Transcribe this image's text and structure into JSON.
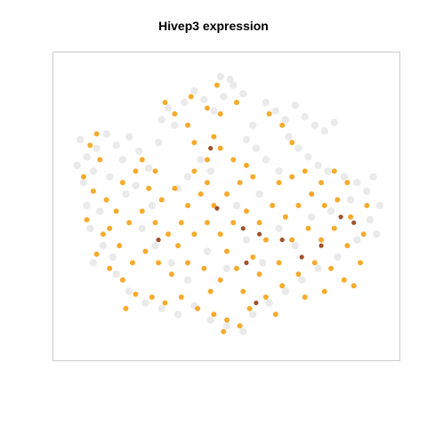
{
  "chart_data": {
    "type": "scatter",
    "title": "Hivep3 expression",
    "xlabel": "",
    "ylabel": "",
    "xlim": [
      0,
      1
    ],
    "ylim": [
      0,
      1
    ],
    "grid": false,
    "axes_visible": false,
    "colors": {
      "background_cells": "#d9d9d9",
      "low_expression": "#f5a623",
      "high_expression": "#a0522d",
      "frame": "#cccccc"
    },
    "series": [
      {
        "role": "non-expressing cells",
        "points": [
          {
            "x": 0.05,
            "y": 0.73
          },
          {
            "x": 0.07,
            "y": 0.67
          },
          {
            "x": 0.09,
            "y": 0.62
          },
          {
            "x": 0.06,
            "y": 0.58
          },
          {
            "x": 0.1,
            "y": 0.7
          },
          {
            "x": 0.13,
            "y": 0.75
          },
          {
            "x": 0.16,
            "y": 0.71
          },
          {
            "x": 0.18,
            "y": 0.66
          },
          {
            "x": 0.14,
            "y": 0.6
          },
          {
            "x": 0.2,
            "y": 0.74
          },
          {
            "x": 0.23,
            "y": 0.69
          },
          {
            "x": 0.26,
            "y": 0.63
          },
          {
            "x": 0.22,
            "y": 0.57
          },
          {
            "x": 0.29,
            "y": 0.72
          },
          {
            "x": 0.32,
            "y": 0.84
          },
          {
            "x": 0.3,
            "y": 0.8
          },
          {
            "x": 0.34,
            "y": 0.78
          },
          {
            "x": 0.37,
            "y": 0.86
          },
          {
            "x": 0.4,
            "y": 0.9
          },
          {
            "x": 0.43,
            "y": 0.87
          },
          {
            "x": 0.46,
            "y": 0.83
          },
          {
            "x": 0.49,
            "y": 0.88
          },
          {
            "x": 0.52,
            "y": 0.92
          },
          {
            "x": 0.55,
            "y": 0.89
          },
          {
            "x": 0.48,
            "y": 0.95
          },
          {
            "x": 0.51,
            "y": 0.94
          },
          {
            "x": 0.62,
            "y": 0.86
          },
          {
            "x": 0.65,
            "y": 0.83
          },
          {
            "x": 0.68,
            "y": 0.8
          },
          {
            "x": 0.71,
            "y": 0.85
          },
          {
            "x": 0.74,
            "y": 0.81
          },
          {
            "x": 0.77,
            "y": 0.78
          },
          {
            "x": 0.8,
            "y": 0.76
          },
          {
            "x": 0.83,
            "y": 0.79
          },
          {
            "x": 0.69,
            "y": 0.74
          },
          {
            "x": 0.72,
            "y": 0.7
          },
          {
            "x": 0.75,
            "y": 0.67
          },
          {
            "x": 0.78,
            "y": 0.64
          },
          {
            "x": 0.81,
            "y": 0.62
          },
          {
            "x": 0.86,
            "y": 0.6
          },
          {
            "x": 0.9,
            "y": 0.58
          },
          {
            "x": 0.93,
            "y": 0.55
          },
          {
            "x": 0.88,
            "y": 0.52
          },
          {
            "x": 0.95,
            "y": 0.6
          },
          {
            "x": 0.66,
            "y": 0.62
          },
          {
            "x": 0.62,
            "y": 0.66
          },
          {
            "x": 0.59,
            "y": 0.7
          },
          {
            "x": 0.56,
            "y": 0.73
          },
          {
            "x": 0.42,
            "y": 0.66
          },
          {
            "x": 0.45,
            "y": 0.62
          },
          {
            "x": 0.38,
            "y": 0.6
          },
          {
            "x": 0.35,
            "y": 0.56
          },
          {
            "x": 0.11,
            "y": 0.48
          },
          {
            "x": 0.08,
            "y": 0.42
          },
          {
            "x": 0.12,
            "y": 0.36
          },
          {
            "x": 0.09,
            "y": 0.3
          },
          {
            "x": 0.16,
            "y": 0.26
          },
          {
            "x": 0.2,
            "y": 0.2
          },
          {
            "x": 0.25,
            "y": 0.16
          },
          {
            "x": 0.3,
            "y": 0.14
          },
          {
            "x": 0.35,
            "y": 0.12
          },
          {
            "x": 0.4,
            "y": 0.15
          },
          {
            "x": 0.45,
            "y": 0.1
          },
          {
            "x": 0.5,
            "y": 0.08
          },
          {
            "x": 0.55,
            "y": 0.06
          },
          {
            "x": 0.58,
            "y": 0.12
          },
          {
            "x": 0.63,
            "y": 0.16
          },
          {
            "x": 0.68,
            "y": 0.2
          },
          {
            "x": 0.73,
            "y": 0.24
          },
          {
            "x": 0.78,
            "y": 0.28
          },
          {
            "x": 0.84,
            "y": 0.32
          },
          {
            "x": 0.9,
            "y": 0.38
          },
          {
            "x": 0.94,
            "y": 0.45
          },
          {
            "x": 0.96,
            "y": 0.4
          },
          {
            "x": 0.24,
            "y": 0.42
          },
          {
            "x": 0.28,
            "y": 0.36
          },
          {
            "x": 0.33,
            "y": 0.3
          },
          {
            "x": 0.38,
            "y": 0.24
          },
          {
            "x": 0.44,
            "y": 0.34
          },
          {
            "x": 0.5,
            "y": 0.28
          },
          {
            "x": 0.56,
            "y": 0.38
          },
          {
            "x": 0.61,
            "y": 0.3
          },
          {
            "x": 0.66,
            "y": 0.42
          },
          {
            "x": 0.71,
            "y": 0.36
          },
          {
            "x": 0.76,
            "y": 0.46
          },
          {
            "x": 0.82,
            "y": 0.48
          },
          {
            "x": 0.19,
            "y": 0.54
          },
          {
            "x": 0.27,
            "y": 0.5
          },
          {
            "x": 0.53,
            "y": 0.5
          },
          {
            "x": 0.6,
            "y": 0.54
          },
          {
            "x": 0.15,
            "y": 0.32
          },
          {
            "x": 0.07,
            "y": 0.5
          },
          {
            "x": 0.04,
            "y": 0.64
          },
          {
            "x": 0.97,
            "y": 0.5
          },
          {
            "x": 0.58,
            "y": 0.78
          }
        ]
      },
      {
        "role": "expressing cells (low)",
        "points": [
          {
            "x": 0.08,
            "y": 0.71
          },
          {
            "x": 0.11,
            "y": 0.66
          },
          {
            "x": 0.09,
            "y": 0.55
          },
          {
            "x": 0.07,
            "y": 0.45
          },
          {
            "x": 0.12,
            "y": 0.4
          },
          {
            "x": 0.1,
            "y": 0.33
          },
          {
            "x": 0.14,
            "y": 0.28
          },
          {
            "x": 0.18,
            "y": 0.24
          },
          {
            "x": 0.22,
            "y": 0.19
          },
          {
            "x": 0.27,
            "y": 0.18
          },
          {
            "x": 0.31,
            "y": 0.16
          },
          {
            "x": 0.36,
            "y": 0.18
          },
          {
            "x": 0.41,
            "y": 0.14
          },
          {
            "x": 0.46,
            "y": 0.12
          },
          {
            "x": 0.5,
            "y": 0.1
          },
          {
            "x": 0.54,
            "y": 0.08
          },
          {
            "x": 0.49,
            "y": 0.06
          },
          {
            "x": 0.57,
            "y": 0.14
          },
          {
            "x": 0.62,
            "y": 0.18
          },
          {
            "x": 0.67,
            "y": 0.22
          },
          {
            "x": 0.72,
            "y": 0.26
          },
          {
            "x": 0.77,
            "y": 0.3
          },
          {
            "x": 0.82,
            "y": 0.28
          },
          {
            "x": 0.86,
            "y": 0.24
          },
          {
            "x": 0.89,
            "y": 0.22
          },
          {
            "x": 0.91,
            "y": 0.3
          },
          {
            "x": 0.87,
            "y": 0.36
          },
          {
            "x": 0.92,
            "y": 0.4
          },
          {
            "x": 0.88,
            "y": 0.46
          },
          {
            "x": 0.93,
            "y": 0.5
          },
          {
            "x": 0.84,
            "y": 0.52
          },
          {
            "x": 0.8,
            "y": 0.5
          },
          {
            "x": 0.76,
            "y": 0.54
          },
          {
            "x": 0.72,
            "y": 0.5
          },
          {
            "x": 0.68,
            "y": 0.46
          },
          {
            "x": 0.64,
            "y": 0.5
          },
          {
            "x": 0.6,
            "y": 0.44
          },
          {
            "x": 0.56,
            "y": 0.48
          },
          {
            "x": 0.52,
            "y": 0.44
          },
          {
            "x": 0.48,
            "y": 0.4
          },
          {
            "x": 0.44,
            "y": 0.44
          },
          {
            "x": 0.4,
            "y": 0.4
          },
          {
            "x": 0.36,
            "y": 0.44
          },
          {
            "x": 0.32,
            "y": 0.4
          },
          {
            "x": 0.28,
            "y": 0.44
          },
          {
            "x": 0.24,
            "y": 0.48
          },
          {
            "x": 0.2,
            "y": 0.44
          },
          {
            "x": 0.16,
            "y": 0.48
          },
          {
            "x": 0.13,
            "y": 0.52
          },
          {
            "x": 0.18,
            "y": 0.58
          },
          {
            "x": 0.22,
            "y": 0.62
          },
          {
            "x": 0.26,
            "y": 0.56
          },
          {
            "x": 0.3,
            "y": 0.52
          },
          {
            "x": 0.34,
            "y": 0.56
          },
          {
            "x": 0.38,
            "y": 0.5
          },
          {
            "x": 0.42,
            "y": 0.54
          },
          {
            "x": 0.46,
            "y": 0.5
          },
          {
            "x": 0.5,
            "y": 0.54
          },
          {
            "x": 0.54,
            "y": 0.58
          },
          {
            "x": 0.58,
            "y": 0.6
          },
          {
            "x": 0.44,
            "y": 0.58
          },
          {
            "x": 0.4,
            "y": 0.62
          },
          {
            "x": 0.44,
            "y": 0.66
          },
          {
            "x": 0.48,
            "y": 0.7
          },
          {
            "x": 0.52,
            "y": 0.66
          },
          {
            "x": 0.56,
            "y": 0.64
          },
          {
            "x": 0.46,
            "y": 0.74
          },
          {
            "x": 0.4,
            "y": 0.72
          },
          {
            "x": 0.38,
            "y": 0.78
          },
          {
            "x": 0.34,
            "y": 0.82
          },
          {
            "x": 0.31,
            "y": 0.86
          },
          {
            "x": 0.39,
            "y": 0.88
          },
          {
            "x": 0.44,
            "y": 0.84
          },
          {
            "x": 0.48,
            "y": 0.82
          },
          {
            "x": 0.53,
            "y": 0.86
          },
          {
            "x": 0.47,
            "y": 0.92
          },
          {
            "x": 0.63,
            "y": 0.82
          },
          {
            "x": 0.67,
            "y": 0.78
          },
          {
            "x": 0.7,
            "y": 0.72
          },
          {
            "x": 0.66,
            "y": 0.58
          },
          {
            "x": 0.7,
            "y": 0.6
          },
          {
            "x": 0.74,
            "y": 0.62
          },
          {
            "x": 0.79,
            "y": 0.58
          },
          {
            "x": 0.83,
            "y": 0.62
          },
          {
            "x": 0.87,
            "y": 0.58
          },
          {
            "x": 0.62,
            "y": 0.38
          },
          {
            "x": 0.58,
            "y": 0.32
          },
          {
            "x": 0.53,
            "y": 0.28
          },
          {
            "x": 0.48,
            "y": 0.24
          },
          {
            "x": 0.43,
            "y": 0.28
          },
          {
            "x": 0.38,
            "y": 0.3
          },
          {
            "x": 0.33,
            "y": 0.26
          },
          {
            "x": 0.29,
            "y": 0.3
          },
          {
            "x": 0.25,
            "y": 0.34
          },
          {
            "x": 0.21,
            "y": 0.3
          },
          {
            "x": 0.17,
            "y": 0.36
          },
          {
            "x": 0.14,
            "y": 0.42
          },
          {
            "x": 0.66,
            "y": 0.3
          },
          {
            "x": 0.7,
            "y": 0.38
          },
          {
            "x": 0.75,
            "y": 0.42
          },
          {
            "x": 0.79,
            "y": 0.38
          },
          {
            "x": 0.83,
            "y": 0.42
          },
          {
            "x": 0.06,
            "y": 0.6
          },
          {
            "x": 0.1,
            "y": 0.75
          },
          {
            "x": 0.24,
            "y": 0.66
          },
          {
            "x": 0.28,
            "y": 0.62
          },
          {
            "x": 0.5,
            "y": 0.34
          },
          {
            "x": 0.55,
            "y": 0.2
          },
          {
            "x": 0.45,
            "y": 0.2
          },
          {
            "x": 0.35,
            "y": 0.36
          },
          {
            "x": 0.6,
            "y": 0.26
          },
          {
            "x": 0.65,
            "y": 0.12
          },
          {
            "x": 0.74,
            "y": 0.18
          },
          {
            "x": 0.8,
            "y": 0.2
          },
          {
            "x": 0.19,
            "y": 0.14
          }
        ]
      },
      {
        "role": "expressing cells (high)",
        "points": [
          {
            "x": 0.45,
            "y": 0.7
          },
          {
            "x": 0.47,
            "y": 0.49
          },
          {
            "x": 0.55,
            "y": 0.42
          },
          {
            "x": 0.6,
            "y": 0.4
          },
          {
            "x": 0.67,
            "y": 0.38
          },
          {
            "x": 0.73,
            "y": 0.32
          },
          {
            "x": 0.79,
            "y": 0.36
          },
          {
            "x": 0.85,
            "y": 0.46
          },
          {
            "x": 0.89,
            "y": 0.44
          },
          {
            "x": 0.56,
            "y": 0.3
          },
          {
            "x": 0.29,
            "y": 0.38
          },
          {
            "x": 0.59,
            "y": 0.16
          }
        ]
      }
    ]
  }
}
